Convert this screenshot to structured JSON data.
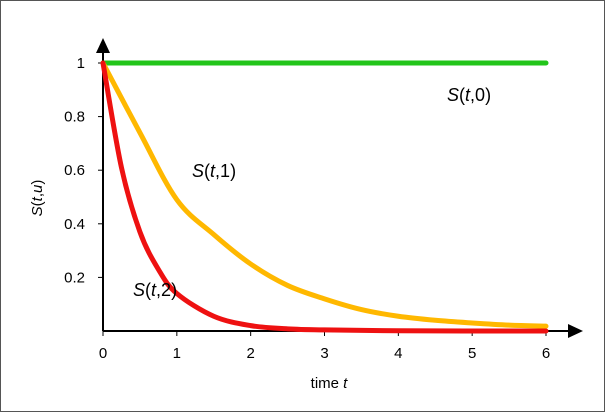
{
  "chart_data": {
    "type": "line",
    "xlabel": "time",
    "xlabel_var": "t",
    "ylabel": {
      "fn": "S",
      "open": "(",
      "a": "t",
      "sep": ",",
      "b": "u",
      "close": ")"
    },
    "xlim": [
      0,
      6
    ],
    "ylim": [
      0,
      1.1
    ],
    "x_ticks": [
      "0",
      "1",
      "2",
      "3",
      "4",
      "5",
      "6"
    ],
    "y_ticks": [
      "0.2",
      "0.4",
      "0.6",
      "0.8",
      "1"
    ],
    "grid": false,
    "legend": "none",
    "series": [
      {
        "name": {
          "fn": "S",
          "open": "(",
          "a": "t",
          "sep": ",",
          "b": "0",
          "close": ")"
        },
        "color": "#22c51a",
        "x": [
          0,
          1,
          2,
          3,
          4,
          5,
          6
        ],
        "values": [
          1,
          1,
          1,
          1,
          1,
          1,
          1
        ]
      },
      {
        "name": {
          "fn": "S",
          "open": "(",
          "a": "t",
          "sep": ",",
          "b": "1",
          "close": ")"
        },
        "color": "#ffb800",
        "x": [
          0,
          0.5,
          1,
          1.5,
          2,
          2.5,
          3,
          3.5,
          4,
          4.5,
          5,
          5.5,
          6
        ],
        "values": [
          1,
          0.74,
          0.49,
          0.36,
          0.25,
          0.17,
          0.12,
          0.08,
          0.055,
          0.04,
          0.03,
          0.022,
          0.018
        ]
      },
      {
        "name": {
          "fn": "S",
          "open": "(",
          "a": "t",
          "sep": ",",
          "b": "2",
          "close": ")"
        },
        "color": "#ee1111",
        "x": [
          0,
          0.25,
          0.5,
          0.75,
          1,
          1.5,
          2,
          2.5,
          3,
          4,
          5,
          6
        ],
        "values": [
          1,
          0.61,
          0.37,
          0.23,
          0.14,
          0.055,
          0.02,
          0.008,
          0.004,
          0.001,
          0,
          0
        ]
      }
    ]
  }
}
